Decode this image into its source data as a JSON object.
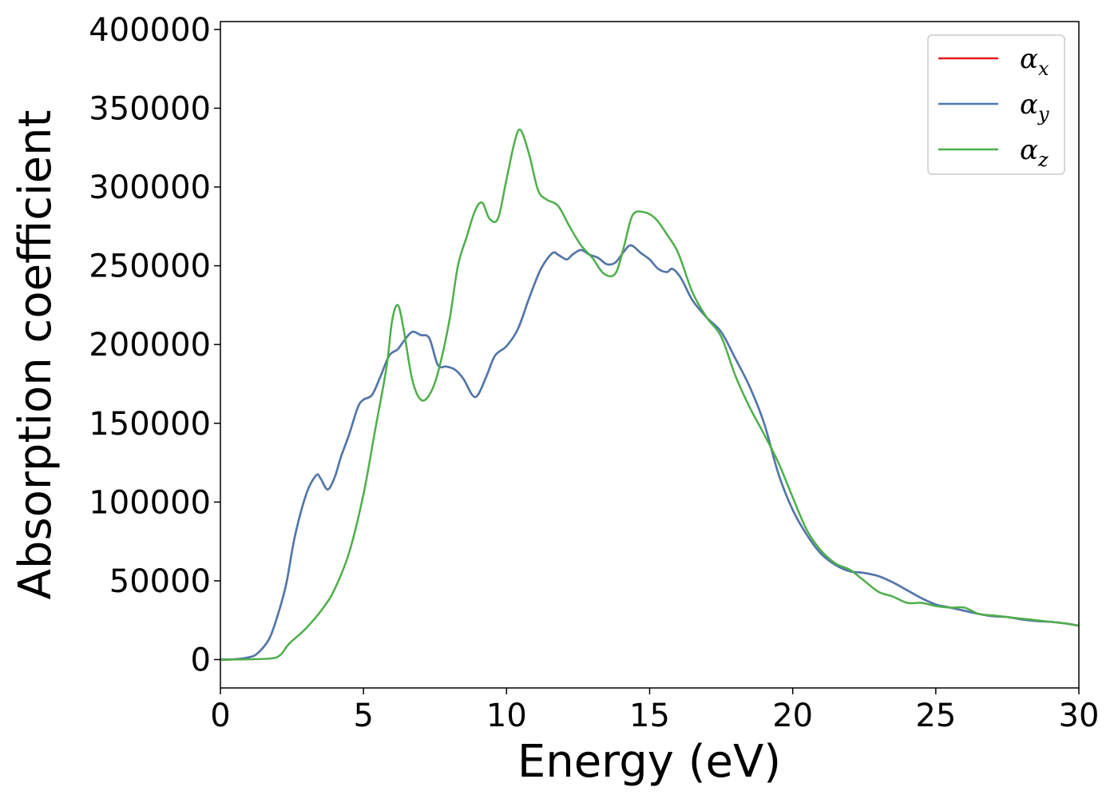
{
  "chart_data": {
    "type": "line",
    "title": "",
    "xlabel": "Energy (eV)",
    "ylabel": "Absorption coefficient",
    "xlim": [
      0,
      30
    ],
    "ylim": [
      -18000,
      405000
    ],
    "xticks": [
      0,
      5,
      10,
      15,
      20,
      25,
      30
    ],
    "yticks": [
      0,
      50000,
      100000,
      150000,
      200000,
      250000,
      300000,
      350000,
      400000
    ],
    "grid": false,
    "legend_position": "top-right",
    "series": [
      {
        "name": "α_x",
        "legend_base": "α",
        "legend_sub": "x",
        "color": "#e41a1c",
        "x": [
          0,
          0.5,
          1.0,
          1.3,
          1.7,
          2.0,
          2.3,
          2.6,
          3.0,
          3.35,
          3.5,
          3.75,
          4.0,
          4.2,
          4.5,
          4.8,
          5.0,
          5.3,
          5.6,
          5.9,
          6.2,
          6.4,
          6.7,
          7.0,
          7.3,
          7.6,
          7.9,
          8.2,
          8.5,
          8.8,
          9.0,
          9.3,
          9.6,
          10.0,
          10.4,
          10.8,
          11.2,
          11.6,
          11.8,
          12.1,
          12.3,
          12.6,
          12.9,
          13.2,
          13.5,
          13.8,
          14.1,
          14.35,
          14.7,
          15.0,
          15.3,
          15.6,
          15.8,
          16.1,
          16.5,
          17.0,
          17.5,
          18.0,
          18.5,
          19.0,
          19.5,
          20.0,
          20.5,
          21.0,
          21.5,
          22.0,
          22.5,
          23.0,
          23.5,
          24.0,
          24.5,
          25.0,
          25.5,
          26.0,
          26.5,
          27.0,
          27.5,
          28.0,
          28.5,
          29.0,
          29.5,
          30.0
        ],
        "values": [
          0,
          200,
          1500,
          4000,
          13000,
          28000,
          48000,
          78000,
          105000,
          117000,
          115000,
          108000,
          116000,
          128000,
          143000,
          160000,
          165000,
          168000,
          180000,
          193000,
          197000,
          202000,
          208000,
          206000,
          204000,
          187000,
          186000,
          184000,
          178000,
          168000,
          168000,
          180000,
          193000,
          199000,
          210000,
          230000,
          248000,
          258000,
          257000,
          254000,
          257000,
          260000,
          257000,
          255000,
          251000,
          252000,
          259000,
          263000,
          258000,
          254000,
          248000,
          246000,
          248000,
          242000,
          228000,
          217000,
          208000,
          191000,
          173000,
          150000,
          118000,
          95000,
          79000,
          67000,
          60000,
          56000,
          55000,
          53000,
          49000,
          44000,
          39000,
          35000,
          33000,
          31000,
          29000,
          27500,
          27000,
          25500,
          24500,
          24000,
          23000,
          21500
        ]
      },
      {
        "name": "α_y",
        "legend_base": "α",
        "legend_sub": "y",
        "color": "#4a7ab0",
        "x": [
          0,
          0.5,
          1.0,
          1.3,
          1.7,
          2.0,
          2.3,
          2.6,
          3.0,
          3.35,
          3.5,
          3.75,
          4.0,
          4.2,
          4.5,
          4.8,
          5.0,
          5.3,
          5.6,
          5.9,
          6.2,
          6.4,
          6.7,
          7.0,
          7.3,
          7.6,
          7.9,
          8.2,
          8.5,
          8.8,
          9.0,
          9.3,
          9.6,
          10.0,
          10.4,
          10.8,
          11.2,
          11.6,
          11.8,
          12.1,
          12.3,
          12.6,
          12.9,
          13.2,
          13.5,
          13.8,
          14.1,
          14.35,
          14.7,
          15.0,
          15.3,
          15.6,
          15.8,
          16.1,
          16.5,
          17.0,
          17.5,
          18.0,
          18.5,
          19.0,
          19.5,
          20.0,
          20.5,
          21.0,
          21.5,
          22.0,
          22.5,
          23.0,
          23.5,
          24.0,
          24.5,
          25.0,
          25.5,
          26.0,
          26.5,
          27.0,
          27.5,
          28.0,
          28.5,
          29.0,
          29.5,
          30.0
        ],
        "values": [
          0,
          200,
          1500,
          4000,
          13000,
          28000,
          48000,
          78000,
          105000,
          117000,
          115000,
          108000,
          116000,
          128000,
          143000,
          160000,
          165000,
          168000,
          180000,
          193000,
          197000,
          202000,
          208000,
          206000,
          204000,
          187000,
          186000,
          184000,
          178000,
          168000,
          168000,
          180000,
          193000,
          199000,
          210000,
          230000,
          248000,
          258000,
          257000,
          254000,
          257000,
          260000,
          257000,
          255000,
          251000,
          252000,
          259000,
          263000,
          258000,
          254000,
          248000,
          246000,
          248000,
          242000,
          228000,
          217000,
          208000,
          191000,
          173000,
          150000,
          118000,
          95000,
          79000,
          67000,
          60000,
          56000,
          55000,
          53000,
          49000,
          44000,
          39000,
          35000,
          33000,
          31000,
          29000,
          27500,
          27000,
          25500,
          24500,
          24000,
          23000,
          21500
        ]
      },
      {
        "name": "α_z",
        "legend_base": "α",
        "legend_sub": "z",
        "color": "#4daf4a",
        "x": [
          0,
          1.0,
          1.8,
          2.1,
          2.4,
          3.0,
          3.6,
          4.0,
          4.5,
          5.0,
          5.4,
          5.8,
          6.0,
          6.2,
          6.4,
          6.7,
          7.0,
          7.3,
          7.6,
          8.0,
          8.3,
          8.6,
          8.9,
          9.15,
          9.4,
          9.7,
          10.0,
          10.3,
          10.5,
          10.8,
          11.1,
          11.4,
          11.8,
          12.2,
          12.6,
          13.0,
          13.4,
          13.8,
          14.1,
          14.4,
          14.8,
          15.2,
          15.6,
          16.0,
          16.5,
          17.0,
          17.5,
          18.0,
          18.5,
          19.0,
          19.5,
          20.0,
          20.5,
          21.0,
          21.5,
          22.0,
          22.5,
          23.0,
          23.5,
          24.0,
          24.5,
          25.0,
          25.5,
          26.0,
          26.5,
          27.0,
          27.5,
          28.0,
          28.5,
          29.0,
          29.5,
          30.0
        ],
        "values": [
          0,
          200,
          800,
          3000,
          10000,
          20000,
          33000,
          45000,
          68000,
          105000,
          145000,
          185000,
          215000,
          225000,
          210000,
          178000,
          165000,
          168000,
          182000,
          215000,
          250000,
          268000,
          285000,
          290000,
          280000,
          280000,
          305000,
          330000,
          336000,
          320000,
          298000,
          292000,
          288000,
          275000,
          263000,
          255000,
          245000,
          245000,
          262000,
          282000,
          284000,
          280000,
          270000,
          258000,
          233000,
          217000,
          205000,
          180000,
          160000,
          143000,
          125000,
          103000,
          82000,
          69000,
          61000,
          57000,
          50000,
          43000,
          40000,
          36000,
          36000,
          34000,
          33000,
          33000,
          29000,
          28000,
          27000,
          26000,
          25000,
          24000,
          23000,
          21500
        ]
      }
    ]
  }
}
